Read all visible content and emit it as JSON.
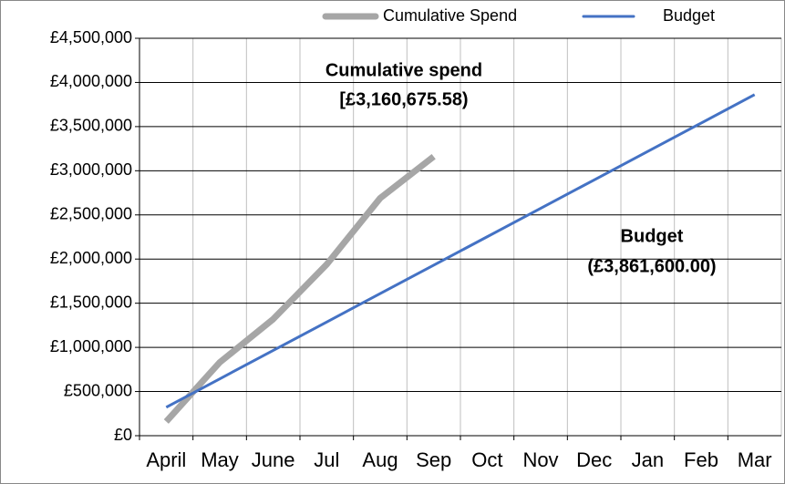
{
  "chart_data": {
    "type": "line",
    "categories": [
      "April",
      "May",
      "June",
      "Jul",
      "Aug",
      "Sep",
      "Oct",
      "Nov",
      "Dec",
      "Jan",
      "Feb",
      "Mar"
    ],
    "series": [
      {
        "name": "Cumulative Spend",
        "color": "#a6a6a6",
        "values": [
          160000,
          830000,
          1320000,
          1940000,
          2690000,
          3160675.58,
          null,
          null,
          null,
          null,
          null,
          null
        ]
      },
      {
        "name": "Budget",
        "color": "#4472c4",
        "values": [
          321800,
          643600,
          965400,
          1287200,
          1609000,
          1930800,
          2252600,
          2574400,
          2896200,
          3218000,
          3539800,
          3861600
        ]
      }
    ],
    "ylim": [
      0,
      4500000
    ],
    "yticks": [
      {
        "value": 0,
        "label": "£0"
      },
      {
        "value": 500000,
        "label": "£500,000"
      },
      {
        "value": 1000000,
        "label": "£1,000,000"
      },
      {
        "value": 1500000,
        "label": "£1,500,000"
      },
      {
        "value": 2000000,
        "label": "£2,000,000"
      },
      {
        "value": 2500000,
        "label": "£2,500,000"
      },
      {
        "value": 3000000,
        "label": "£3,000,000"
      },
      {
        "value": 3500000,
        "label": "£3,500,000"
      },
      {
        "value": 4000000,
        "label": "£4,000,000"
      },
      {
        "value": 4500000,
        "label": "£4,500,000"
      }
    ],
    "grid": true,
    "legend": "top",
    "annotations": [
      "Cumulative spend",
      "[£3,160,675.58)",
      "Budget",
      "(£3,861,600.00)"
    ]
  }
}
